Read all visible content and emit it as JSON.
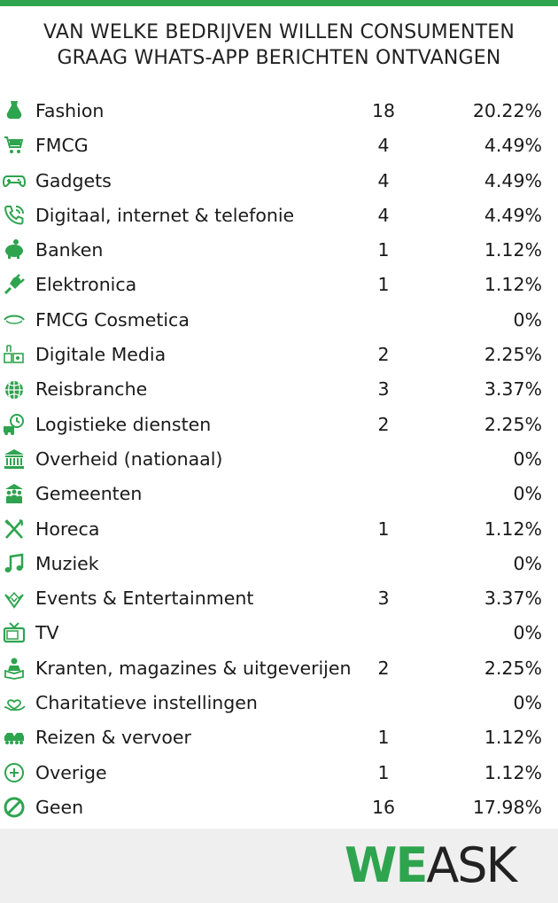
{
  "header": {
    "line1": "VAN WELKE BEDRIJVEN WILLEN CONSUMENTEN",
    "line2": "GRAAG WHATS-APP BERICHTEN ONTVANGEN"
  },
  "brand": {
    "we": "WE",
    "ask": "ASK"
  },
  "colors": {
    "accent": "#2ea44f",
    "footer_bg": "#efefef"
  },
  "chart_data": {
    "type": "table",
    "title": "VAN WELKE BEDRIJVEN WILLEN CONSUMENTEN GRAAG WHATS-APP BERICHTEN ONTVANGEN",
    "rows": [
      {
        "icon": "dress-icon",
        "label": "Fashion",
        "count": "18",
        "percent": "20.22%"
      },
      {
        "icon": "shopping-cart-icon",
        "label": "FMCG",
        "count": "4",
        "percent": "4.49%"
      },
      {
        "icon": "gamepad-icon",
        "label": "Gadgets",
        "count": "4",
        "percent": "4.49%"
      },
      {
        "icon": "phone-icon",
        "label": "Digitaal, internet & telefonie",
        "count": "4",
        "percent": "4.49%"
      },
      {
        "icon": "piggy-bank-icon",
        "label": "Banken",
        "count": "1",
        "percent": "1.12%"
      },
      {
        "icon": "plug-icon",
        "label": "Elektronica",
        "count": "1",
        "percent": "1.12%"
      },
      {
        "icon": "eye-icon",
        "label": "FMCG Cosmetica",
        "count": "",
        "percent": "0%"
      },
      {
        "icon": "media-icon",
        "label": "Digitale Media",
        "count": "2",
        "percent": "2.25%"
      },
      {
        "icon": "globe-icon",
        "label": "Reisbranche",
        "count": "3",
        "percent": "3.37%"
      },
      {
        "icon": "truck-clock-icon",
        "label": "Logistieke diensten",
        "count": "2",
        "percent": "2.25%"
      },
      {
        "icon": "government-building-icon",
        "label": "Overheid (nationaal)",
        "count": "",
        "percent": "0%"
      },
      {
        "icon": "people-icon",
        "label": "Gemeenten",
        "count": "",
        "percent": "0%"
      },
      {
        "icon": "fork-knife-icon",
        "label": "Horeca",
        "count": "1",
        "percent": "1.12%"
      },
      {
        "icon": "music-note-icon",
        "label": "Muziek",
        "count": "",
        "percent": "0%"
      },
      {
        "icon": "confetti-icon",
        "label": "Events & Entertainment",
        "count": "3",
        "percent": "3.37%"
      },
      {
        "icon": "tv-icon",
        "label": "TV",
        "count": "",
        "percent": "0%"
      },
      {
        "icon": "reader-icon",
        "label": "Kranten, magazines & uitgeverijen",
        "count": "2",
        "percent": "2.25%"
      },
      {
        "icon": "heart-hand-icon",
        "label": "Charitatieve instellingen",
        "count": "",
        "percent": "0%"
      },
      {
        "icon": "vehicles-icon",
        "label": "Reizen & vervoer",
        "count": "1",
        "percent": "1.12%"
      },
      {
        "icon": "plus-circle-icon",
        "label": "Overige",
        "count": "1",
        "percent": "1.12%"
      },
      {
        "icon": "no-entry-icon",
        "label": "Geen",
        "count": "16",
        "percent": "17.98%"
      }
    ]
  }
}
